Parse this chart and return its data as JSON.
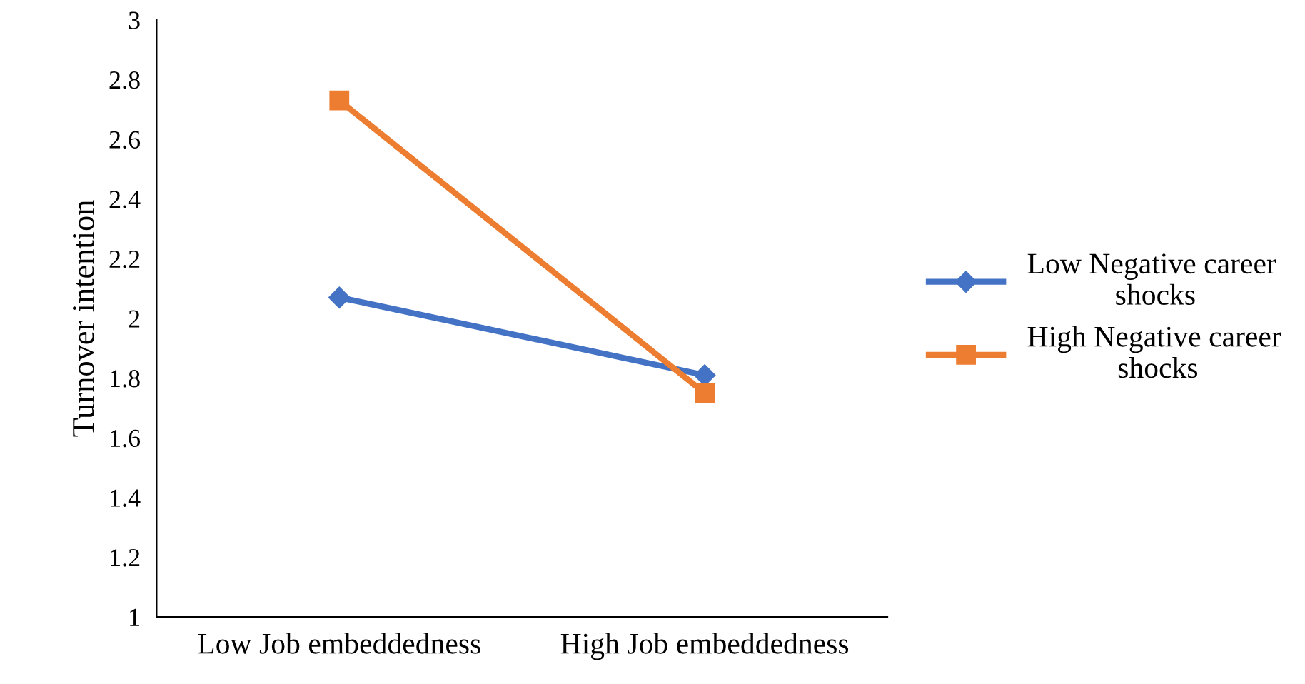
{
  "chart_data": {
    "type": "line",
    "ylabel": "Turnover intention",
    "categories": [
      "Low Job embeddedness",
      "High Job embeddedness"
    ],
    "series": [
      {
        "name": "Low Negative career shocks",
        "color": "#4472c4",
        "values": [
          2.07,
          1.81
        ],
        "marker": "diamond"
      },
      {
        "name": "High Negative career shocks",
        "color": "#ed7d31",
        "values": [
          2.73,
          1.75
        ],
        "marker": "square"
      }
    ],
    "ylim": [
      1,
      3
    ],
    "yticks": [
      1,
      1.2,
      1.4,
      1.6,
      1.8,
      2,
      2.2,
      2.4,
      2.6,
      2.8,
      3
    ],
    "grid": false,
    "legend": "right"
  }
}
